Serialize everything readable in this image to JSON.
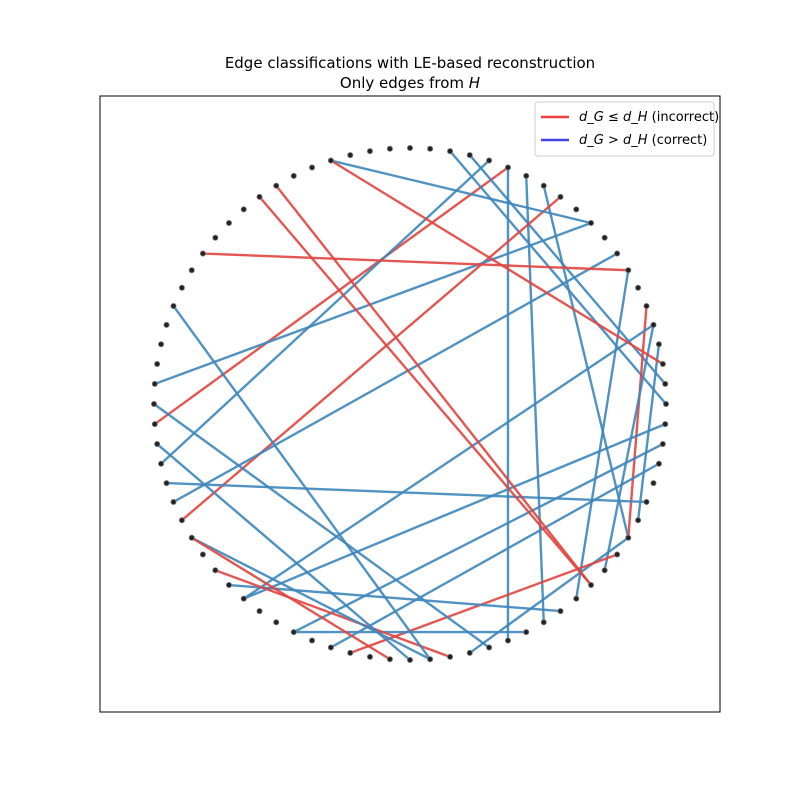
{
  "figure": {
    "title_line1": "Edge classifications with LE-based reconstruction",
    "title_line2_prefix": "Only edges from ",
    "title_line2_symbol": "H"
  },
  "legend": {
    "location": "upper right",
    "entries": [
      {
        "label_sym": "d_G ≤ d_H",
        "label_text": "(incorrect)",
        "color": "#ee4040"
      },
      {
        "label_sym": "d_G > d_H",
        "label_text": "(correct)",
        "color": "#4444e6"
      }
    ]
  },
  "chart_data": {
    "type": "network",
    "layout": "circular",
    "node_count": 80,
    "node_color": "#222222",
    "edge_colors": {
      "incorrect": "#e0453f",
      "correct": "#3d86bb"
    },
    "edges": [
      {
        "source": 5,
        "target": 59,
        "class": "incorrect"
      },
      {
        "source": 2,
        "target": 20,
        "class": "correct"
      },
      {
        "source": 3,
        "target": 19,
        "class": "correct"
      },
      {
        "source": 4,
        "target": 57,
        "class": "correct"
      },
      {
        "source": 5,
        "target": 35,
        "class": "correct"
      },
      {
        "source": 6,
        "target": 33,
        "class": "correct"
      },
      {
        "source": 7,
        "target": 27,
        "class": "correct"
      },
      {
        "source": 8,
        "target": 54,
        "class": "incorrect"
      },
      {
        "source": 10,
        "target": 76,
        "class": "correct"
      },
      {
        "source": 10,
        "target": 61,
        "class": "correct"
      },
      {
        "source": 12,
        "target": 55,
        "class": "correct"
      },
      {
        "source": 13,
        "target": 68,
        "class": "incorrect"
      },
      {
        "source": 13,
        "target": 31,
        "class": "correct"
      },
      {
        "source": 15,
        "target": 27,
        "class": "incorrect"
      },
      {
        "source": 16,
        "target": 29,
        "class": "correct"
      },
      {
        "source": 16,
        "target": 49,
        "class": "correct"
      },
      {
        "source": 17,
        "target": 26,
        "class": "correct"
      },
      {
        "source": 18,
        "target": 76,
        "class": "incorrect"
      },
      {
        "source": 21,
        "target": 49,
        "class": "correct"
      },
      {
        "source": 22,
        "target": 46,
        "class": "correct"
      },
      {
        "source": 23,
        "target": 44,
        "class": "correct"
      },
      {
        "source": 25,
        "target": 56,
        "class": "correct"
      },
      {
        "source": 27,
        "target": 37,
        "class": "correct"
      },
      {
        "source": 28,
        "target": 43,
        "class": "incorrect"
      },
      {
        "source": 30,
        "target": 72,
        "class": "incorrect"
      },
      {
        "source": 30,
        "target": 73,
        "class": "incorrect"
      },
      {
        "source": 32,
        "target": 50,
        "class": "correct"
      },
      {
        "source": 34,
        "target": 46,
        "class": "correct"
      },
      {
        "source": 36,
        "target": 60,
        "class": "correct"
      },
      {
        "source": 38,
        "target": 51,
        "class": "incorrect"
      },
      {
        "source": 39,
        "target": 53,
        "class": "correct"
      },
      {
        "source": 40,
        "target": 58,
        "class": "correct"
      },
      {
        "source": 41,
        "target": 53,
        "class": "incorrect"
      },
      {
        "source": 39,
        "target": 65,
        "class": "correct"
      }
    ]
  }
}
